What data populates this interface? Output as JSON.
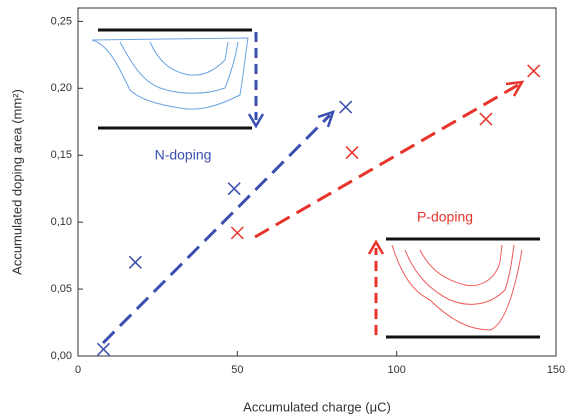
{
  "chart_data": {
    "type": "scatter",
    "xlabel": "Accumulated charge (μC)",
    "ylabel": "Accumulated doping area (mm²)",
    "xlim": [
      0,
      150
    ],
    "ylim": [
      0,
      0.26
    ],
    "xticks": [
      0,
      50,
      100,
      150
    ],
    "yticks": [
      {
        "value": 0,
        "label": "0,00"
      },
      {
        "value": 0.05,
        "label": "0,05"
      },
      {
        "value": 0.1,
        "label": "0,10"
      },
      {
        "value": 0.15,
        "label": "0,15"
      },
      {
        "value": 0.2,
        "label": "0,20"
      },
      {
        "value": 0.25,
        "label": "0,25"
      }
    ],
    "series": [
      {
        "name": "N-doping",
        "color": "#3a4fb0",
        "x": [
          8,
          18,
          49,
          84
        ],
        "values": [
          0.005,
          0.07,
          0.125,
          0.186
        ]
      },
      {
        "name": "P-doping",
        "color": "#e8332a",
        "x": [
          50,
          86,
          128,
          143
        ],
        "values": [
          0.092,
          0.152,
          0.177,
          0.213
        ]
      }
    ]
  }
}
